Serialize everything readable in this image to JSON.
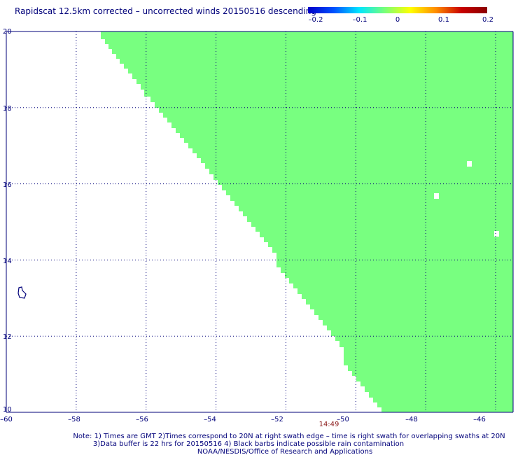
{
  "title": "Rapidscat 12.5km corrected – uncorrected winds 20150516 descending",
  "colorbar": {
    "labels": [
      "–0.2",
      "–0.1",
      "0",
      "0.1",
      "0.2"
    ],
    "range": [
      -0.2,
      0.2
    ],
    "colors": [
      "#0000c8",
      "#0050ff",
      "#00e6ff",
      "#78ff78",
      "#ffff00",
      "#ff8c00",
      "#c80000",
      "#8b0000"
    ]
  },
  "map": {
    "lon_range": [
      -60,
      -45.5
    ],
    "lat_range": [
      10,
      20
    ],
    "lon_ticks": [
      "–60",
      "–58",
      "–56",
      "–54",
      "–52",
      "–50",
      "–48",
      "–46"
    ],
    "lat_ticks": [
      "20",
      "18",
      "16",
      "14",
      "12",
      "10"
    ],
    "swath_color": "#78ff80",
    "swath_value": 0,
    "grid_color": "#00007a",
    "coast_color": "#00007a",
    "pass_time": "14:49",
    "pass_time_color": "#8b1a1a"
  },
  "notes": {
    "line1": "Note: 1) Times are GMT 2)Times correspond to 20N at right swath edge – time is right swath for overlapping swaths at 20N",
    "line2": "3)Data buffer is 22 hrs for 20150516 4) Black barbs indicate possible rain contamination",
    "line3": "NOAA/NESDIS/Office of Research and Applications"
  }
}
